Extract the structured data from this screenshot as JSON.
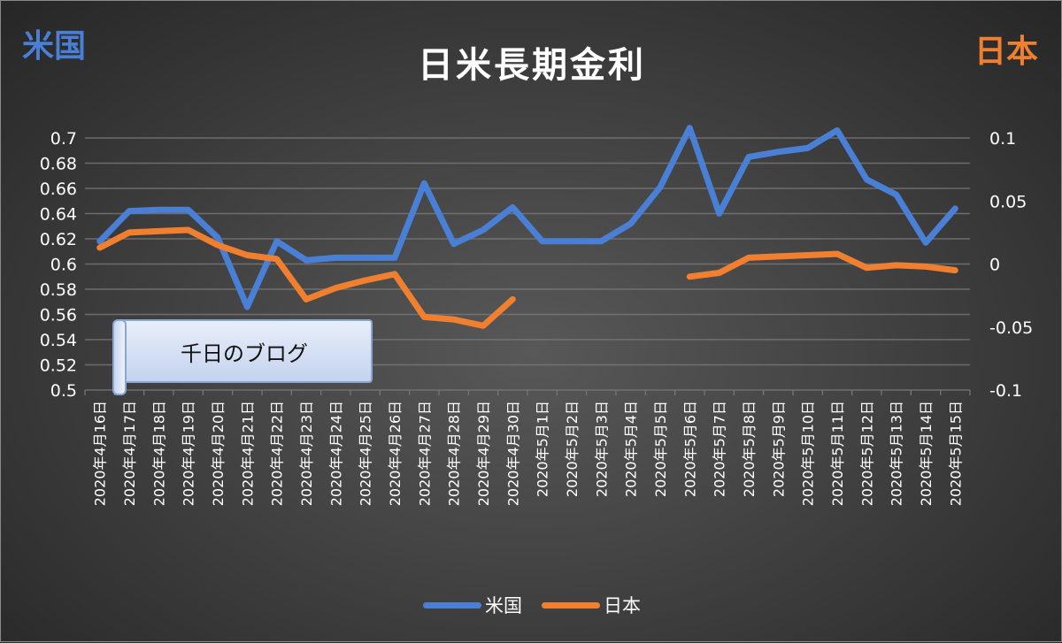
{
  "title": "日米長期金利",
  "left_axis_title": "米国",
  "right_axis_title": "日本",
  "watermark": "千日のブログ",
  "colors": {
    "us": "#4a7fd6",
    "jp": "#f08030",
    "grid": "#7a7a7a",
    "text": "#ffffff"
  },
  "left_ticks": [
    "0.7",
    "0.68",
    "0.66",
    "0.64",
    "0.62",
    "0.6",
    "0.58",
    "0.56",
    "0.54",
    "0.52",
    "0.5"
  ],
  "right_ticks": [
    "0.1",
    "0.05",
    "0",
    "-0.05",
    "-0.1"
  ],
  "legend": [
    {
      "label": "米国",
      "color": "#4a7fd6"
    },
    {
      "label": "日本",
      "color": "#f08030"
    }
  ],
  "chart_data": {
    "type": "line",
    "title": "日米長期金利",
    "xlabel": "",
    "ylabel": "米国",
    "y2label": "日本",
    "ylim": [
      0.5,
      0.7
    ],
    "y2lim": [
      -0.1,
      0.1
    ],
    "grid": true,
    "legend_position": "bottom",
    "categories": [
      "2020年4月16日",
      "2020年4月17日",
      "2020年4月18日",
      "2020年4月19日",
      "2020年4月20日",
      "2020年4月21日",
      "2020年4月22日",
      "2020年4月23日",
      "2020年4月24日",
      "2020年4月25日",
      "2020年4月26日",
      "2020年4月27日",
      "2020年4月28日",
      "2020年4月29日",
      "2020年4月30日",
      "2020年5月1日",
      "2020年5月2日",
      "2020年5月3日",
      "2020年5月4日",
      "2020年5月5日",
      "2020年5月6日",
      "2020年5月7日",
      "2020年5月8日",
      "2020年5月9日",
      "2020年5月10日",
      "2020年5月11日",
      "2020年5月12日",
      "2020年5月13日",
      "2020年5月14日",
      "2020年5月15日"
    ],
    "series": [
      {
        "name": "米国",
        "axis": "left",
        "color": "#4a7fd6",
        "values": [
          0.618,
          0.642,
          0.643,
          0.643,
          0.621,
          0.566,
          0.618,
          0.603,
          0.605,
          0.605,
          0.605,
          0.664,
          0.616,
          0.627,
          0.645,
          0.618,
          0.618,
          0.618,
          0.632,
          0.661,
          0.708,
          0.64,
          0.685,
          0.689,
          0.692,
          0.706,
          0.667,
          0.655,
          0.617,
          0.644
        ]
      },
      {
        "name": "日本",
        "axis": "right",
        "color": "#f08030",
        "values": [
          0.013,
          0.025,
          0.026,
          0.027,
          0.015,
          0.007,
          0.004,
          -0.028,
          -0.019,
          -0.013,
          -0.008,
          -0.042,
          -0.044,
          -0.049,
          -0.028,
          null,
          null,
          null,
          null,
          null,
          -0.01,
          -0.007,
          0.005,
          0.006,
          0.007,
          0.008,
          -0.003,
          -0.001,
          -0.002,
          -0.005
        ]
      }
    ]
  }
}
